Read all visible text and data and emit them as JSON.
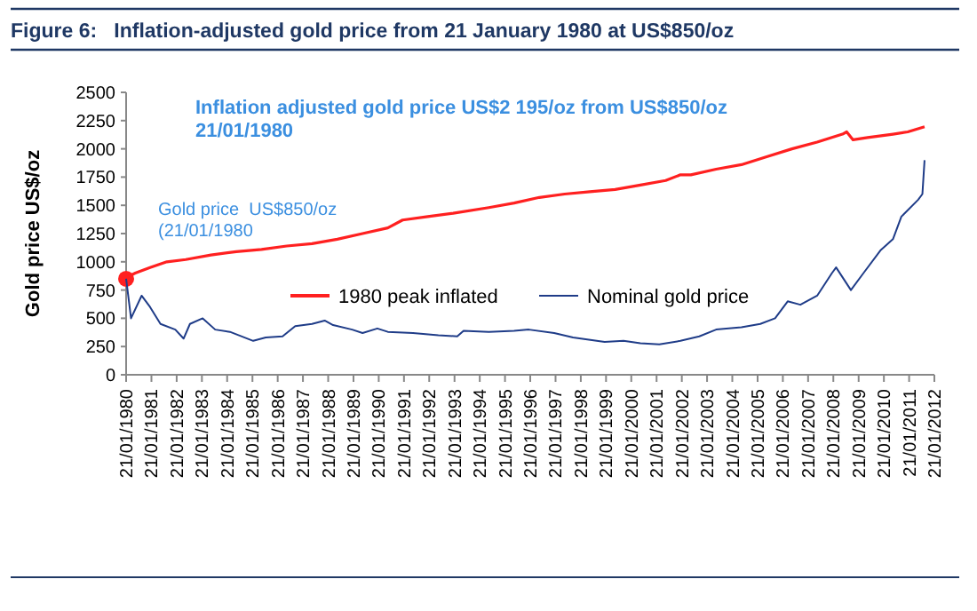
{
  "chart_data": {
    "type": "line",
    "title": "Figure 6:   Inflation-adjusted gold price from 21 January 1980 at US$850/oz",
    "ylabel": "Gold price US$/oz",
    "annotations": [
      "Inflation adjusted gold price US$2 195/oz from US$850/oz\n21/01/1980",
      {
        "text": "Gold price  US$850/oz\n(21/01/1980",
        "x": "1980-01-21",
        "y": 850
      }
    ],
    "xlim": [
      "1980-01-21",
      "2012-01-21"
    ],
    "xticks": [
      {
        "value": "1980-01-21",
        "label": "21/01/1980"
      },
      {
        "value": "1981-01-21",
        "label": "21/01/1981"
      },
      {
        "value": "1982-01-21",
        "label": "21/01/1982"
      },
      {
        "value": "1983-01-21",
        "label": "21/01/1983"
      },
      {
        "value": "1984-01-21",
        "label": "21/01/1984"
      },
      {
        "value": "1985-01-21",
        "label": "21/01/1985"
      },
      {
        "value": "1986-01-21",
        "label": "21/01/1986"
      },
      {
        "value": "1987-01-21",
        "label": "21/01/1987"
      },
      {
        "value": "1988-01-21",
        "label": "21/01/1988"
      },
      {
        "value": "1989-01-21",
        "label": "21/01/1989"
      },
      {
        "value": "1990-01-21",
        "label": "21/01/1990"
      },
      {
        "value": "1991-01-21",
        "label": "21/01/1991"
      },
      {
        "value": "1992-01-21",
        "label": "21/01/1992"
      },
      {
        "value": "1993-01-21",
        "label": "21/01/1993"
      },
      {
        "value": "1994-01-21",
        "label": "21/01/1994"
      },
      {
        "value": "1995-01-21",
        "label": "21/01/1995"
      },
      {
        "value": "1996-01-21",
        "label": "21/01/1996"
      },
      {
        "value": "1997-01-21",
        "label": "21/01/1997"
      },
      {
        "value": "1998-01-21",
        "label": "21/01/1998"
      },
      {
        "value": "1999-01-21",
        "label": "21/01/1999"
      },
      {
        "value": "2000-01-21",
        "label": "21/01/2000"
      },
      {
        "value": "2001-01-21",
        "label": "21/01/2001"
      },
      {
        "value": "2002-01-21",
        "label": "21/01/2002"
      },
      {
        "value": "2003-01-21",
        "label": "21/01/2003"
      },
      {
        "value": "2004-01-21",
        "label": "21/01/2004"
      },
      {
        "value": "2005-01-21",
        "label": "21/01/2005"
      },
      {
        "value": "2006-01-21",
        "label": "21/01/2006"
      },
      {
        "value": "2007-01-21",
        "label": "21/01/2007"
      },
      {
        "value": "2008-01-21",
        "label": "21/01/2008"
      },
      {
        "value": "2009-01-21",
        "label": "21/01/2009"
      },
      {
        "value": "2010-01-21",
        "label": "21/01/2010"
      },
      {
        "value": "2011-01-21",
        "label": "21/01/2011"
      },
      {
        "value": "2012-01-21",
        "label": "21/01/2012"
      }
    ],
    "ylim": [
      0,
      2500
    ],
    "yticks": [
      0,
      250,
      500,
      750,
      1000,
      1250,
      1500,
      1750,
      2000,
      2250,
      2500
    ],
    "legend": "center",
    "grid": false,
    "series": [
      {
        "name": "1980 peak inflated",
        "color": "#ff2020",
        "x": [
          "1980-01-21",
          "1980-06-01",
          "1981-01-01",
          "1981-09-01",
          "1982-06-01",
          "1983-06-01",
          "1984-06-01",
          "1985-06-01",
          "1986-06-01",
          "1987-06-01",
          "1988-06-01",
          "1989-06-01",
          "1990-06-01",
          "1991-01-01",
          "1992-01-01",
          "1993-01-01",
          "1994-06-01",
          "1995-06-01",
          "1996-06-01",
          "1997-06-01",
          "1998-06-01",
          "1999-06-01",
          "2000-06-01",
          "2001-06-01",
          "2002-01-01",
          "2002-06-01",
          "2003-06-01",
          "2004-06-01",
          "2005-06-01",
          "2006-06-01",
          "2007-06-01",
          "2008-06-01",
          "2008-08-01",
          "2008-11-01",
          "2009-06-01",
          "2010-06-01",
          "2011-01-01",
          "2011-09-01"
        ],
        "values": [
          860,
          900,
          950,
          1000,
          1020,
          1060,
          1090,
          1110,
          1140,
          1160,
          1200,
          1250,
          1300,
          1370,
          1400,
          1430,
          1480,
          1520,
          1570,
          1600,
          1620,
          1640,
          1680,
          1720,
          1770,
          1770,
          1820,
          1860,
          1930,
          2000,
          2060,
          2130,
          2150,
          2080,
          2100,
          2130,
          2150,
          2195
        ]
      },
      {
        "name": "Nominal gold price",
        "color": "#1f3c88",
        "x": [
          "1980-01-21",
          "1980-04-01",
          "1980-09-01",
          "1981-01-01",
          "1981-06-01",
          "1982-01-01",
          "1982-05-01",
          "1982-08-01",
          "1983-02-01",
          "1983-08-01",
          "1984-03-01",
          "1985-02-01",
          "1985-08-01",
          "1986-04-01",
          "1986-10-01",
          "1987-06-01",
          "1987-12-01",
          "1988-04-01",
          "1989-01-01",
          "1989-06-01",
          "1990-01-01",
          "1990-06-01",
          "1991-06-01",
          "1992-06-01",
          "1993-03-01",
          "1993-06-01",
          "1994-06-01",
          "1995-06-01",
          "1996-01-01",
          "1997-01-01",
          "1997-10-01",
          "1999-01-01",
          "1999-10-01",
          "2000-06-01",
          "2001-03-01",
          "2002-01-01",
          "2002-10-01",
          "2003-06-01",
          "2004-06-01",
          "2005-03-01",
          "2005-10-01",
          "2006-04-01",
          "2006-10-01",
          "2007-06-01",
          "2008-01-01",
          "2008-03-01",
          "2008-10-01",
          "2009-04-01",
          "2009-12-01",
          "2010-06-01",
          "2010-10-01",
          "2011-06-01",
          "2011-08-01",
          "2011-09-01"
        ],
        "values": [
          850,
          500,
          700,
          600,
          450,
          400,
          320,
          450,
          500,
          400,
          380,
          300,
          330,
          340,
          430,
          450,
          480,
          440,
          400,
          370,
          410,
          380,
          370,
          350,
          340,
          390,
          380,
          390,
          400,
          370,
          330,
          290,
          300,
          280,
          270,
          300,
          340,
          400,
          420,
          450,
          500,
          650,
          620,
          700,
          900,
          950,
          750,
          900,
          1100,
          1200,
          1400,
          1550,
          1600,
          1900
        ]
      },
      {
        "type": "scatter",
        "color": "#ff2020",
        "marker": "circle",
        "x": [
          "1980-01-21"
        ],
        "values": [
          850
        ]
      }
    ]
  }
}
